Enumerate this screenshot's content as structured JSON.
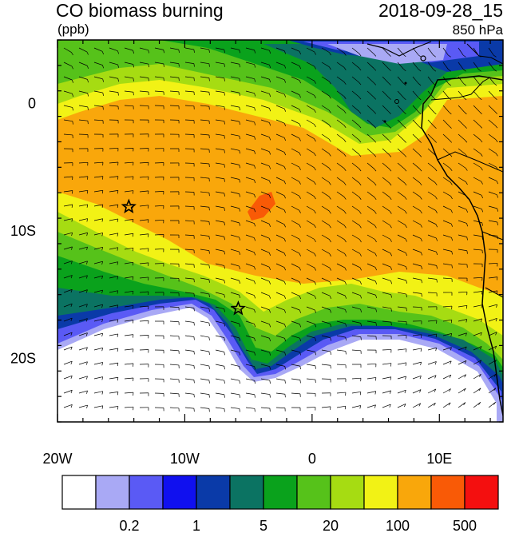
{
  "header": {
    "title": "CO biomass burning",
    "units": "(ppb)",
    "datetime": "2018-09-28_15",
    "level": "850 hPa"
  },
  "axes": {
    "x_ticks": [
      {
        "value": -20,
        "label": "20W"
      },
      {
        "value": -10,
        "label": "10W"
      },
      {
        "value": 0,
        "label": "0"
      },
      {
        "value": 10,
        "label": "10E"
      }
    ],
    "y_ticks": [
      {
        "value": 0,
        "label": "0"
      },
      {
        "value": -10,
        "label": "10S"
      },
      {
        "value": -20,
        "label": "20S"
      }
    ],
    "lon_range": [
      -20,
      15
    ],
    "lat_range": [
      -25,
      5
    ]
  },
  "colorbar": {
    "colors": [
      "#ffffff",
      "#a9a9f5",
      "#5a5af5",
      "#1010ef",
      "#0a3aa8",
      "#0b7362",
      "#0aa21c",
      "#56c21a",
      "#a6dc12",
      "#f2f215",
      "#f9a70b",
      "#f95a06",
      "#f40f0f"
    ],
    "labels": [
      {
        "after_box": 1,
        "text": "0.2"
      },
      {
        "after_box": 3,
        "text": "1"
      },
      {
        "after_box": 5,
        "text": "5"
      },
      {
        "after_box": 7,
        "text": "20"
      },
      {
        "after_box": 9,
        "text": "100"
      },
      {
        "after_box": 11,
        "text": "500"
      }
    ]
  },
  "markers": [
    {
      "name": "star-marker-1",
      "lon": -14.4,
      "lat": -8.1
    },
    {
      "name": "star-marker-2",
      "lon": -5.8,
      "lat": -16.1
    }
  ]
}
